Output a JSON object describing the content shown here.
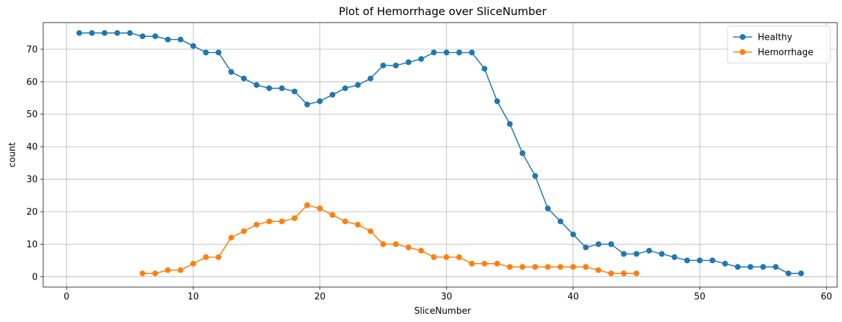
{
  "chart_data": {
    "type": "line",
    "title": "Plot of Hemorrhage over SliceNumber",
    "xlabel": "SliceNumber",
    "ylabel": "count",
    "xlim": [
      -1.85,
      60.85
    ],
    "ylim": [
      -3.2,
      78.2
    ],
    "xticks": [
      0,
      10,
      20,
      30,
      40,
      50,
      60
    ],
    "yticks": [
      0,
      10,
      20,
      30,
      40,
      50,
      60,
      70
    ],
    "grid": true,
    "legend_position": "top-right",
    "series": [
      {
        "name": "Healthy",
        "color": "#1f77b4",
        "x": [
          1,
          2,
          3,
          4,
          5,
          6,
          7,
          8,
          9,
          10,
          11,
          12,
          13,
          14,
          15,
          16,
          17,
          18,
          19,
          20,
          21,
          22,
          23,
          24,
          25,
          26,
          27,
          28,
          29,
          30,
          31,
          32,
          33,
          34,
          35,
          36,
          37,
          38,
          39,
          40,
          41,
          42,
          43,
          44,
          45,
          46,
          47,
          48,
          49,
          50,
          51,
          52,
          53,
          54,
          55,
          56,
          57,
          58
        ],
        "y": [
          75,
          75,
          75,
          75,
          75,
          74,
          74,
          73,
          73,
          71,
          69,
          69,
          63,
          61,
          59,
          58,
          58,
          57,
          53,
          54,
          56,
          58,
          59,
          61,
          65,
          65,
          66,
          67,
          69,
          69,
          69,
          69,
          64,
          54,
          47,
          38,
          31,
          21,
          17,
          13,
          9,
          10,
          10,
          7,
          7,
          8,
          7,
          6,
          5,
          5,
          5,
          4,
          3,
          3,
          3,
          3,
          1,
          1
        ]
      },
      {
        "name": "Hemorrhage",
        "color": "#ff7f0e",
        "x": [
          6,
          7,
          8,
          9,
          10,
          11,
          12,
          13,
          14,
          15,
          16,
          17,
          18,
          19,
          20,
          21,
          22,
          23,
          24,
          25,
          26,
          27,
          28,
          29,
          30,
          31,
          32,
          33,
          34,
          35,
          36,
          37,
          38,
          39,
          40,
          41,
          42,
          43,
          44,
          45
        ],
        "y": [
          1,
          1,
          2,
          2,
          4,
          6,
          6,
          12,
          14,
          16,
          17,
          17,
          18,
          22,
          21,
          19,
          17,
          16,
          14,
          10,
          10,
          9,
          8,
          6,
          6,
          6,
          4,
          4,
          4,
          3,
          3,
          3,
          3,
          3,
          3,
          3,
          2,
          1,
          1,
          1
        ]
      }
    ]
  }
}
